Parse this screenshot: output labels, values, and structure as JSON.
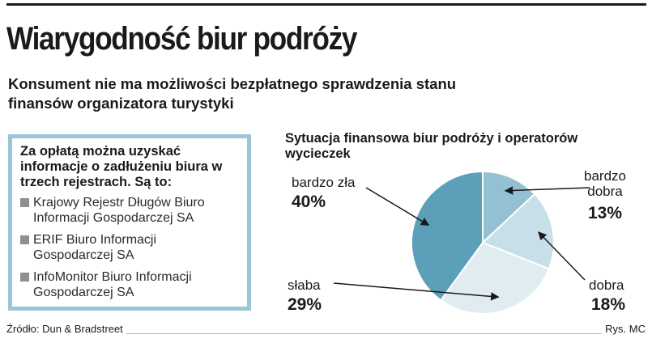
{
  "header": {
    "title": "Wiarygodność biur podróży",
    "subtitle": "Konsument nie ma możliwości bezpłatnego sprawdzenia stanu finansów organizatora turystyki"
  },
  "info_box": {
    "heading": "Za opłatą można uzyskać informacje o zadłużeniu biura w trzech rejestrach. Są to:",
    "items": [
      "Krajowy Rejestr Długów Biuro Informacji Gospodarczej SA",
      "ERIF Biuro Informacji Gospodarczej SA",
      "InfoMonitor Biuro Informacji Gospodarczej SA"
    ],
    "border_color": "#9cc5d6",
    "bullet_color": "#8f8f8f"
  },
  "chart_data": {
    "type": "pie",
    "title": "Sytuacja finansowa biur podróży i operatorów wycieczek",
    "slices": [
      {
        "label": "bardzo zła",
        "value": 40,
        "display": "40%",
        "color": "#5c9fb9"
      },
      {
        "label": "bardzo dobra",
        "value": 13,
        "display": "13%",
        "color": "#93c0d3"
      },
      {
        "label": "dobra",
        "value": 18,
        "display": "18%",
        "color": "#c7dfe8"
      },
      {
        "label": "słaba",
        "value": 29,
        "display": "29%",
        "color": "#e1ecf0"
      }
    ]
  },
  "footer": {
    "source": "Źródło: Dun & Bradstreet",
    "credit": "Rys. MC"
  }
}
